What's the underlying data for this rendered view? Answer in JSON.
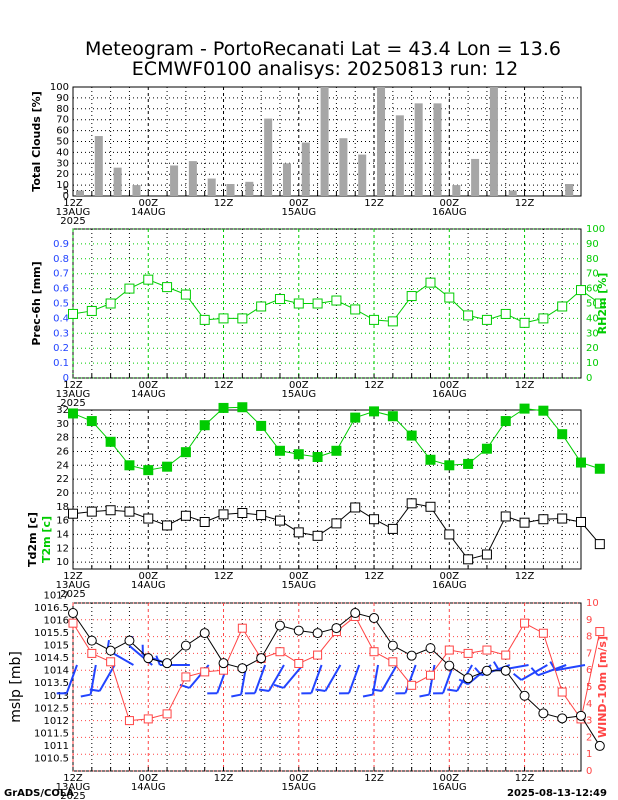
{
  "title_line1": "Meteogram - PortoRecanati Lat = 43.4 Lon = 13.6",
  "title_line2": "ECMWF0100 analisys: 20250813 run: 12",
  "footer_left": "GrADS/COLA",
  "footer_right": "2025-08-13-12:49",
  "colors": {
    "green": "#00cc00",
    "blue": "#2244ff",
    "red": "#ff4444",
    "bar": "#a6a6a6",
    "black": "#000000"
  },
  "time_axis": {
    "steps": 27,
    "ticks": [
      {
        "label": "12Z",
        "sub": "13AUG",
        "sub2": "2025"
      },
      {
        "label": "00Z",
        "sub": "14AUG",
        "sub2": ""
      },
      {
        "label": "12Z",
        "sub": "",
        "sub2": ""
      },
      {
        "label": "00Z",
        "sub": "15AUG",
        "sub2": ""
      },
      {
        "label": "12Z",
        "sub": "",
        "sub2": ""
      },
      {
        "label": "00Z",
        "sub": "16AUG",
        "sub2": ""
      },
      {
        "label": "12Z",
        "sub": "",
        "sub2": ""
      },
      {
        "label": "00Z",
        "sub": "17AUG",
        "sub2": ""
      }
    ]
  },
  "chart_data": [
    {
      "type": "bar",
      "ylabel": "Total Clouds [%]",
      "ylim": [
        0,
        100
      ],
      "yticks": [
        0,
        5,
        10,
        20,
        30,
        40,
        50,
        60,
        70,
        80,
        90,
        100
      ],
      "values": [
        5,
        55,
        26,
        10,
        0,
        28,
        32,
        16,
        11,
        13,
        71,
        30,
        49,
        100,
        53,
        38,
        100,
        74,
        85,
        85,
        10,
        34,
        100,
        5,
        0,
        0,
        11,
        0
      ]
    },
    {
      "type": "line",
      "ylabel": "Prec-6h [mm]",
      "ylabel_right": "RH2m [%]",
      "ylim": [
        0,
        0.9
      ],
      "ylim_right": [
        0,
        100
      ],
      "yticks": [
        "0",
        "0.1",
        "0.2",
        "0.3",
        "0.4",
        "0.5",
        "0.6",
        "0.7",
        "0.8",
        "0.9"
      ],
      "yticks_right": [
        "0",
        "10",
        "20",
        "30",
        "40",
        "50",
        "60",
        "70",
        "80",
        "90",
        "100"
      ],
      "series": [
        {
          "values": [
            43,
            45,
            50,
            60,
            66,
            61,
            56,
            39,
            40,
            40,
            48,
            53,
            50,
            50,
            52,
            46,
            39,
            38,
            55,
            64,
            54,
            42,
            39,
            43,
            37,
            40,
            48,
            59,
            50
          ]
        }
      ]
    },
    {
      "type": "line",
      "ylabel": "Td2m [c]",
      "ylabel_green": "T2m [c]",
      "ylim": [
        9,
        32
      ],
      "yticks": [
        10,
        12,
        14,
        16,
        18,
        20,
        22,
        24,
        26,
        28,
        30,
        32
      ],
      "series": [
        {
          "values": [
            31.5,
            30.4,
            27.4,
            24,
            23.3,
            23.8,
            25.9,
            29.8,
            32.3,
            32.4,
            29.7,
            26.1,
            25.6,
            25.2,
            26.1,
            30.9,
            31.8,
            31.1,
            28.3,
            24.8,
            24,
            24.2,
            26.4,
            30.4,
            32.2,
            31.9,
            28.5,
            24.4,
            23.5
          ]
        },
        {
          "values": [
            17,
            17.3,
            17.5,
            17.3,
            16.3,
            15.3,
            16.7,
            15.8,
            16.9,
            17.1,
            16.8,
            16,
            14.3,
            13.8,
            15.6,
            17.9,
            16.2,
            14.8,
            18.5,
            18,
            14,
            10.4,
            11.1,
            16.6,
            15.7,
            16.2,
            16.3,
            15.8,
            12.6
          ]
        }
      ]
    },
    {
      "type": "line",
      "ylabel": "mslp [mb]",
      "ylabel_right": "WIND-10m [m/s]",
      "ylim": [
        1010,
        1016.7
      ],
      "ylim_right": [
        0,
        10
      ],
      "yticks": [
        "1010.5",
        "1011",
        "1011.5",
        "1012",
        "1012.5",
        "1013",
        "1013.5",
        "1014",
        "1014.5",
        "1015",
        "1015.5",
        "1016",
        "1016.5",
        "1017"
      ],
      "yticks_right": [
        "0",
        "1",
        "2",
        "3",
        "4",
        "5",
        "6",
        "7",
        "8",
        "9",
        "10"
      ],
      "series": [
        {
          "values": [
            1016.3,
            1015.2,
            1014.8,
            1015.2,
            1014.5,
            1014.3,
            1015,
            1015.5,
            1014.3,
            1014.1,
            1014.5,
            1015.8,
            1015.6,
            1015.5,
            1015.7,
            1016.3,
            1016.1,
            1015,
            1014.6,
            1014.9,
            1014.2,
            1013.7,
            1014,
            1014,
            1013,
            1012.3,
            1012.1,
            1012.2,
            1011
          ]
        },
        {
          "values": [
            8.8,
            7,
            6.5,
            3,
            3.1,
            3.4,
            5.6,
            5.9,
            6,
            8.5,
            6.7,
            7.1,
            6.4,
            6.9,
            8.3,
            9.2,
            7.1,
            6.5,
            5.1,
            5.7,
            7.2,
            7,
            7.2,
            6.9,
            8.8,
            8.2,
            4.7,
            3.1,
            8.3
          ]
        }
      ]
    }
  ]
}
